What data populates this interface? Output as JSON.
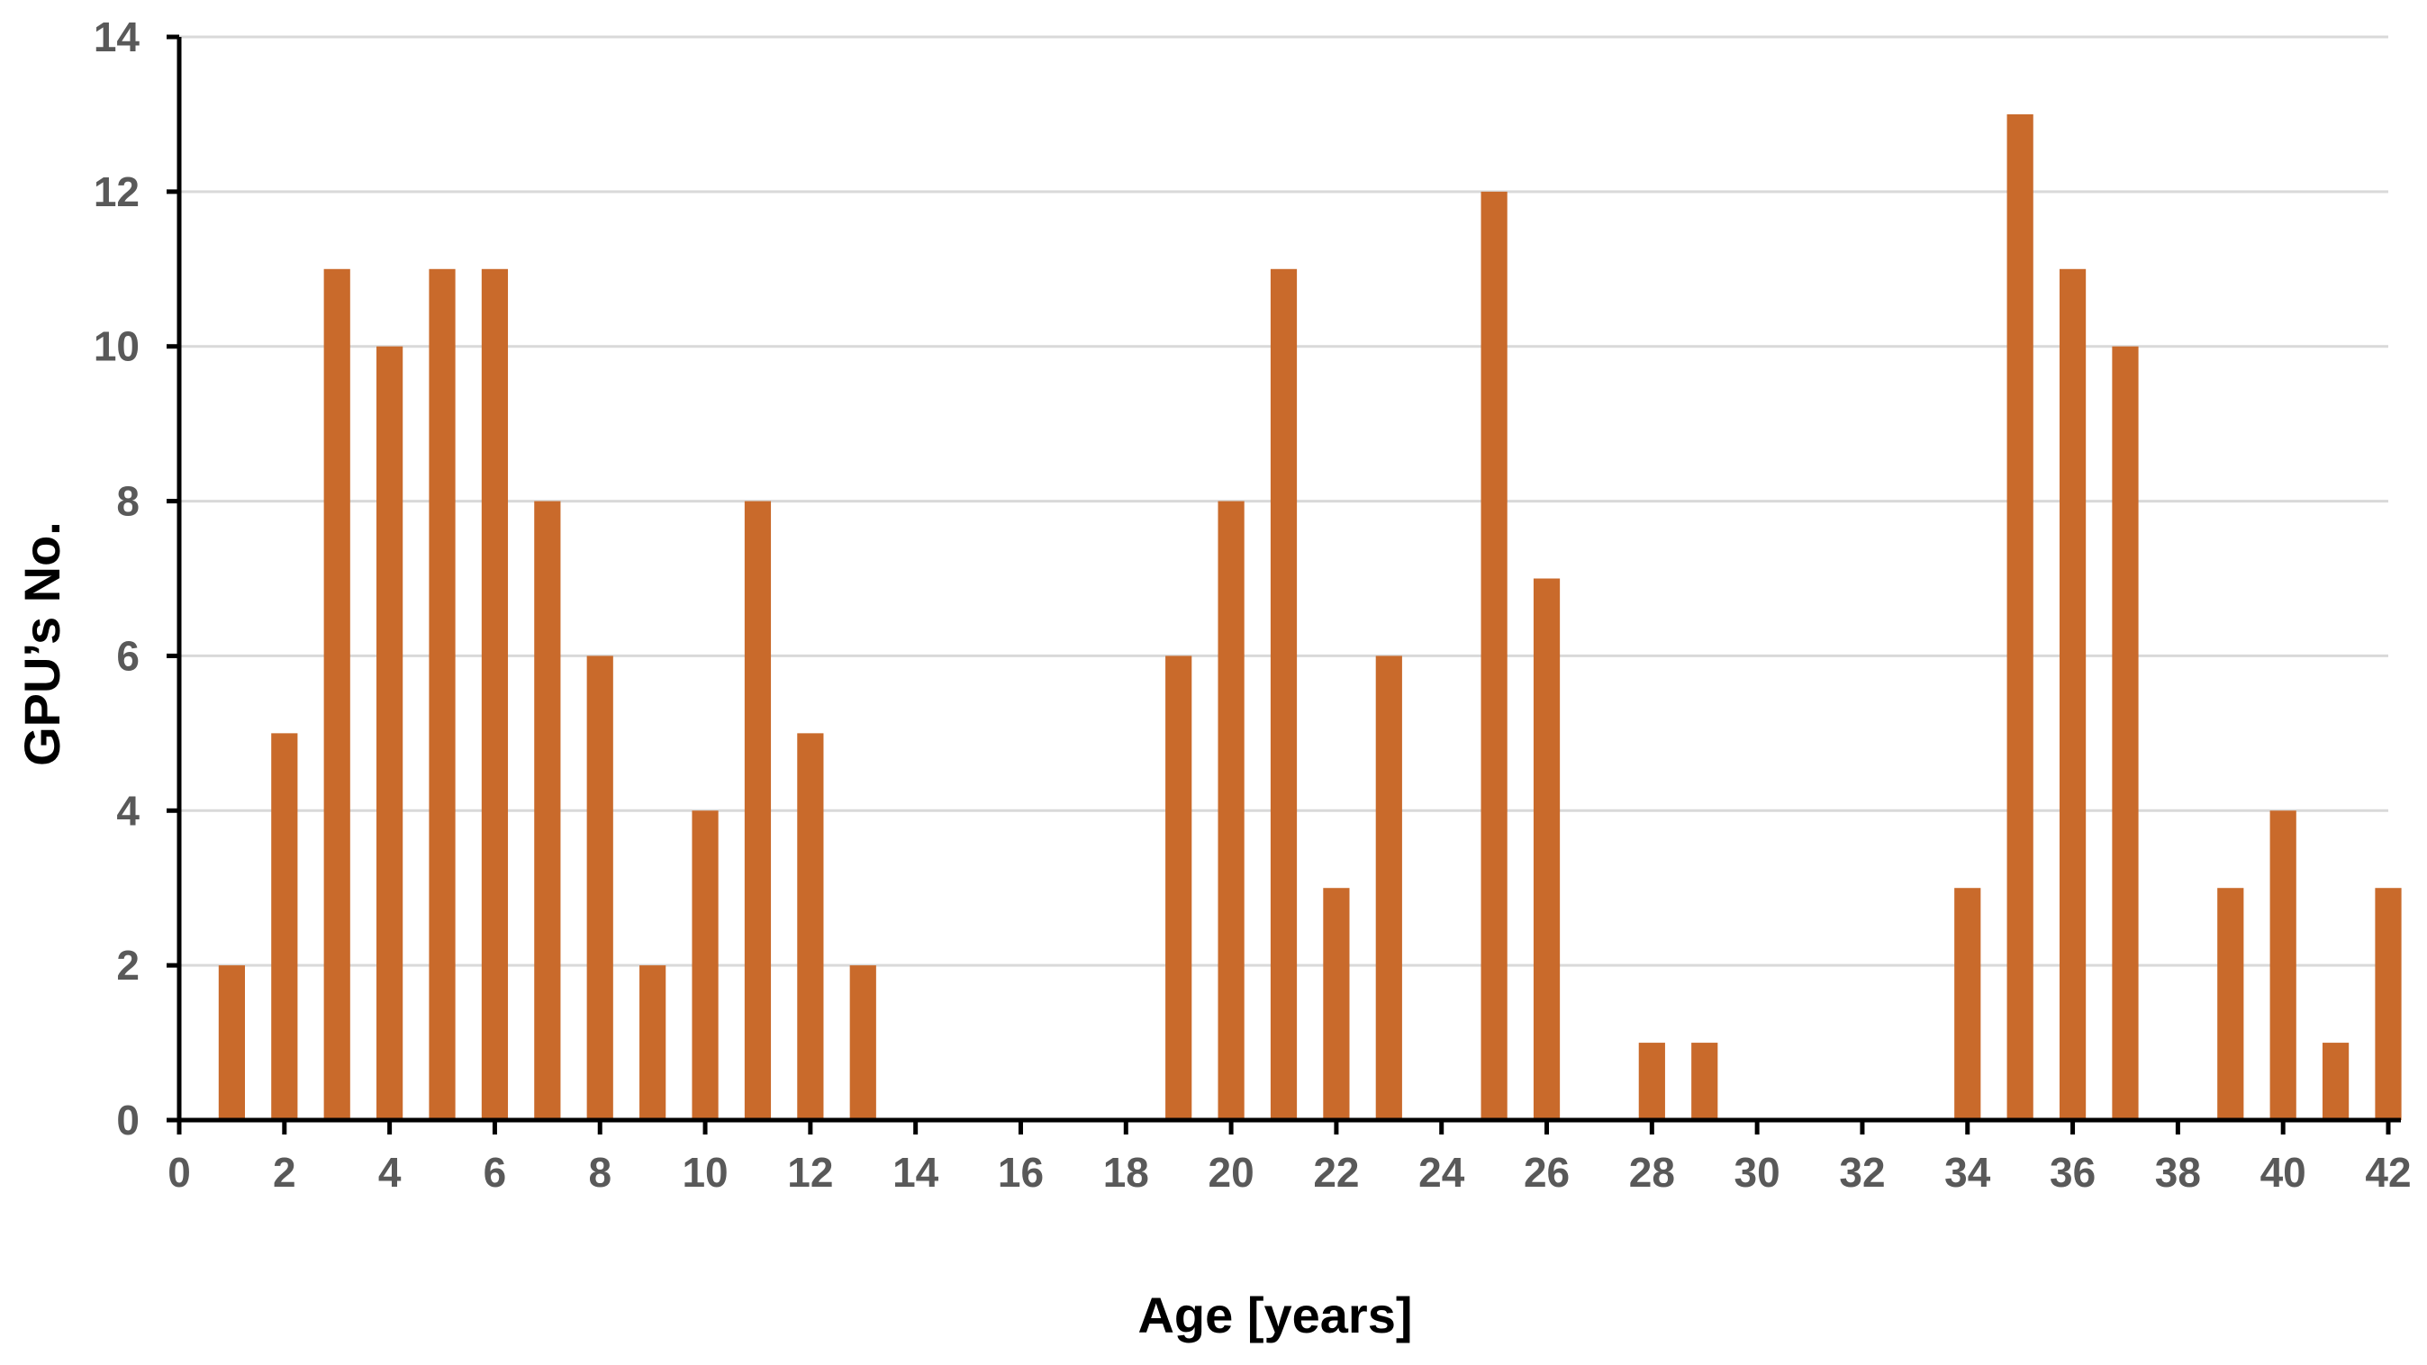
{
  "chart_data": {
    "type": "bar",
    "title": "",
    "xlabel": "Age [years]",
    "ylabel": "GPU’s No.",
    "xlim": [
      0,
      42
    ],
    "ylim": [
      0,
      14
    ],
    "x_ticks": [
      0,
      2,
      4,
      6,
      8,
      10,
      12,
      14,
      16,
      18,
      20,
      22,
      24,
      26,
      28,
      30,
      32,
      34,
      36,
      38,
      40,
      42
    ],
    "y_ticks": [
      0,
      2,
      4,
      6,
      8,
      10,
      12,
      14
    ],
    "x": [
      1,
      2,
      3,
      4,
      5,
      6,
      7,
      8,
      9,
      10,
      11,
      12,
      13,
      14,
      15,
      16,
      17,
      18,
      19,
      20,
      21,
      22,
      23,
      24,
      25,
      26,
      27,
      28,
      29,
      30,
      31,
      32,
      33,
      34,
      35,
      36,
      37,
      38,
      39,
      40,
      41,
      42
    ],
    "values": [
      2,
      5,
      11,
      10,
      11,
      11,
      8,
      6,
      2,
      4,
      8,
      5,
      2,
      0,
      0,
      0,
      0,
      0,
      6,
      8,
      11,
      3,
      6,
      0,
      12,
      7,
      0,
      1,
      1,
      0,
      0,
      0,
      0,
      3,
      13,
      11,
      10,
      0,
      3,
      4,
      1,
      3
    ],
    "grid": true,
    "legend": "none",
    "colors": {
      "bar": "#C96A2B",
      "grid": "#D9D9D9",
      "axis": "#000000",
      "tick_text": "#595959"
    }
  }
}
